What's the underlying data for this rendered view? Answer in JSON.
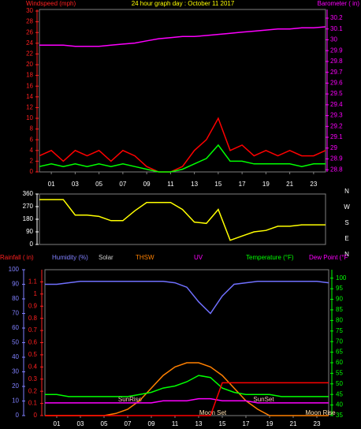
{
  "chart_data": [
    {
      "type": "line",
      "title": "24 hour graph day : October 11 2017",
      "title_color": "#ffff00",
      "y_label": "Windspeed (mph)",
      "y_color": "#ff2020",
      "y2_label": "Barometer ( in)",
      "y2_color": "#ff00ff",
      "x": [
        0,
        1,
        2,
        3,
        4,
        5,
        6,
        7,
        8,
        9,
        10,
        11,
        12,
        13,
        14,
        15,
        16,
        17,
        18,
        19,
        20,
        21,
        22,
        23,
        24
      ],
      "xlim": [
        0,
        24
      ],
      "xticks": [
        {
          "value": 1,
          "label": "01"
        },
        {
          "value": 3,
          "label": "03"
        },
        {
          "value": 5,
          "label": "05"
        },
        {
          "value": 7,
          "label": "07"
        },
        {
          "value": 9,
          "label": "09"
        },
        {
          "value": 11,
          "label": "11"
        },
        {
          "value": 13,
          "label": "13"
        },
        {
          "value": 15,
          "label": "15"
        },
        {
          "value": 17,
          "label": "17"
        },
        {
          "value": 19,
          "label": "19"
        },
        {
          "value": 21,
          "label": "21"
        },
        {
          "value": 23,
          "label": "23"
        }
      ],
      "ylim": [
        0,
        30.3
      ],
      "yticks": [
        0,
        2,
        4,
        6,
        8,
        10,
        12,
        14,
        16,
        18,
        20,
        22,
        24,
        26,
        28,
        30
      ],
      "y2lim": [
        28.78,
        30.28
      ],
      "y2ticks": [
        28.8,
        28.9,
        29,
        29.1,
        29.2,
        29.3,
        29.4,
        29.5,
        29.6,
        29.7,
        29.8,
        29.9,
        30,
        30.1,
        30.2
      ],
      "series": [
        {
          "color": "#ff0000",
          "values": [
            3,
            4,
            2,
            4,
            3,
            4,
            2,
            4,
            3,
            1,
            0,
            0,
            1,
            4,
            6,
            10,
            4,
            5,
            3,
            4,
            3,
            4,
            3,
            3,
            4
          ]
        },
        {
          "color": "#00ff00",
          "values": [
            1,
            1.5,
            1,
            1.5,
            1,
            1.5,
            1,
            1.5,
            1,
            0.5,
            0,
            0,
            0.5,
            1.5,
            2.5,
            5,
            2,
            2,
            1.5,
            1.5,
            1.5,
            1.5,
            1,
            1.5,
            1.5
          ]
        },
        {
          "color": "#ff00ff",
          "axis": "y2",
          "values": [
            29.95,
            29.95,
            29.95,
            29.94,
            29.94,
            29.94,
            29.95,
            29.96,
            29.97,
            29.99,
            30.01,
            30.02,
            30.03,
            30.03,
            30.04,
            30.05,
            30.06,
            30.07,
            30.08,
            30.09,
            30.1,
            30.1,
            30.11,
            30.11,
            30.12
          ]
        }
      ]
    },
    {
      "type": "line",
      "y_color": "#ffffff",
      "x": [
        0,
        1,
        2,
        3,
        4,
        5,
        6,
        7,
        8,
        9,
        10,
        11,
        12,
        13,
        14,
        15,
        16,
        17,
        18,
        19,
        20,
        21,
        22,
        23,
        24
      ],
      "xlim": [
        0,
        24
      ],
      "ylim": [
        0,
        360
      ],
      "yticks": [
        0,
        90,
        180,
        270,
        360
      ],
      "compass_labels": [
        "N",
        "W",
        "S",
        "E",
        "N"
      ],
      "series": [
        {
          "color": "#ffff00",
          "values": [
            320,
            320,
            320,
            210,
            210,
            200,
            170,
            170,
            240,
            300,
            300,
            300,
            250,
            160,
            150,
            250,
            30,
            60,
            90,
            100,
            130,
            130,
            140,
            140,
            140
          ]
        }
      ]
    },
    {
      "type": "line",
      "headers": [
        {
          "text": "Rainfall ( in)",
          "color": "#ff2020"
        },
        {
          "text": "Humidity (%)",
          "color": "#8080ff"
        },
        {
          "text": "Solar",
          "color": "#d0d0d0"
        },
        {
          "text": "THSW",
          "color": "#ff8000"
        },
        {
          "text": "UV",
          "color": "#ff00ff"
        },
        {
          "text": "Temperature (°F)",
          "color": "#00ff00"
        },
        {
          "text": "Dew Point (°F",
          "color": "#ff00ff"
        }
      ],
      "x": [
        0,
        1,
        2,
        3,
        4,
        5,
        6,
        7,
        8,
        9,
        10,
        11,
        12,
        13,
        14,
        15,
        16,
        17,
        18,
        19,
        20,
        21,
        22,
        23,
        24
      ],
      "xlim": [
        0,
        24
      ],
      "xticks": [
        {
          "value": 1,
          "label": "01"
        },
        {
          "value": 3,
          "label": "03"
        },
        {
          "value": 5,
          "label": "05"
        },
        {
          "value": 7,
          "label": "07"
        },
        {
          "value": 9,
          "label": "09"
        },
        {
          "value": 11,
          "label": "11"
        },
        {
          "value": 13,
          "label": "13"
        },
        {
          "value": 15,
          "label": "15"
        },
        {
          "value": 17,
          "label": "17"
        },
        {
          "value": 19,
          "label": "19"
        },
        {
          "value": 21,
          "label": "21"
        },
        {
          "value": 23,
          "label": "23"
        }
      ],
      "ylim": [
        0,
        100
      ],
      "y_color": "#8080ff",
      "yticks": [
        0,
        10,
        20,
        30,
        40,
        50,
        60,
        70,
        80,
        90,
        100
      ],
      "y3lim": [
        0,
        1.2
      ],
      "y3_color": "#ff2020",
      "y3ticks": [
        0,
        0.1,
        0.2,
        0.3,
        0.4,
        0.5,
        0.6,
        0.7,
        0.8,
        0.9,
        1,
        1.1
      ],
      "y2lim": [
        35,
        104
      ],
      "y2_color": "#00ff00",
      "y2ticks": [
        35,
        40,
        45,
        50,
        55,
        60,
        65,
        70,
        75,
        80,
        85,
        90,
        95,
        100
      ],
      "annotations": [
        {
          "text": "SunRise",
          "x": 7.2,
          "row": 1
        },
        {
          "text": "SunSet",
          "x": 18.5,
          "row": 1
        },
        {
          "text": "Moon Set",
          "x": 14.2,
          "row": 2
        },
        {
          "text": "Moon Rise",
          "x": 23.3,
          "row": 2
        }
      ],
      "series": [
        {
          "color": "#7070ff",
          "values": [
            90,
            90,
            91,
            92,
            92,
            92,
            92,
            92,
            92,
            92,
            92,
            91,
            88,
            78,
            70,
            82,
            90,
            91,
            92,
            92,
            92,
            92,
            92,
            92,
            91
          ]
        },
        {
          "color": "#ff8000",
          "axis": "y2",
          "values": [
            35,
            35,
            35,
            35,
            35,
            35,
            36,
            38,
            42,
            48,
            54,
            58,
            60,
            60,
            58,
            54,
            48,
            42,
            38,
            35,
            35,
            35,
            35,
            35,
            35
          ]
        },
        {
          "color": "#00ff00",
          "axis": "y2",
          "values": [
            45,
            45,
            44,
            44,
            44,
            44,
            44,
            44,
            45,
            46,
            48,
            49,
            51,
            54,
            53,
            48,
            46,
            45,
            45,
            45,
            44,
            44,
            44,
            44,
            44
          ]
        },
        {
          "color": "#ff00ff",
          "axis": "y2",
          "values": [
            41,
            41,
            41,
            41,
            41,
            41,
            41,
            41,
            41,
            41,
            42,
            42,
            42,
            43,
            43,
            42,
            42,
            42,
            41,
            41,
            41,
            41,
            41,
            41,
            41
          ]
        },
        {
          "color": "#ff0000",
          "axis": "y3",
          "values": [
            0,
            0,
            0,
            0,
            0,
            0,
            0,
            0,
            0,
            0,
            0,
            0,
            0,
            0,
            0,
            0.27,
            0.27,
            0.27,
            0.27,
            0.27,
            0.27,
            0.27,
            0.27,
            0.27,
            0.27
          ]
        }
      ]
    }
  ]
}
